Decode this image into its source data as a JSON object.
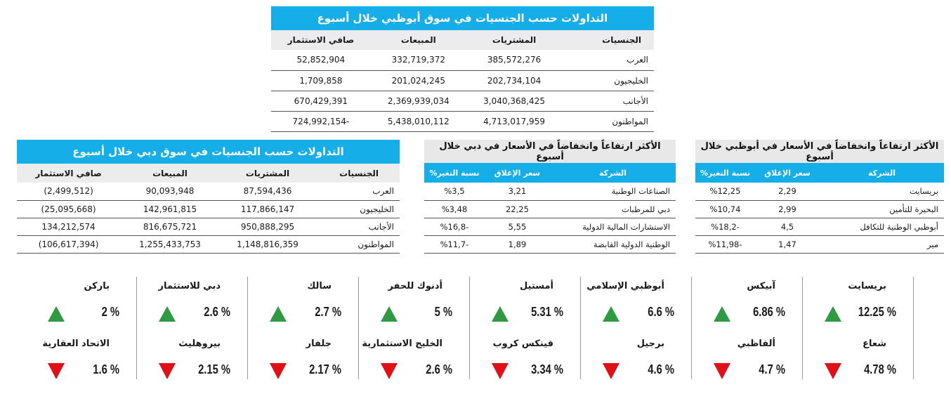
{
  "adx_nationalities": {
    "title": "التداولات حسب الجنسيات في سوق أبوظبي خلال أسبوع",
    "headers": [
      "الجنسيات",
      "المشتريات",
      "المبيعات",
      "صافي الاستثمار"
    ],
    "rows": [
      [
        "العرب",
        "385,572,276",
        "332,719,372",
        "52,852,904"
      ],
      [
        "الخليجيون",
        "202,734,104",
        "201,024,245",
        "1,709,858"
      ],
      [
        "الأجانب",
        "3,040,368,425",
        "2,369,939,034",
        "670,429,391"
      ],
      [
        "المواطنون",
        "4,713,017,959",
        "5,438,010,112",
        "724,992,154-"
      ]
    ]
  },
  "dfm_nationalities": {
    "title": "التداولات حسب الجنسيات في سوق دبي خلال أسبوع",
    "headers": [
      "الجنسيات",
      "المشتريات",
      "المبيعات",
      "صافي الاستثمار"
    ],
    "rows": [
      [
        "العرب",
        "87,594,436",
        "90,093,948",
        "(2,499,512)"
      ],
      [
        "الخليجيون",
        "117,866,147",
        "142,961,815",
        "(25,095,668)"
      ],
      [
        "الأجانب",
        "950,888,295",
        "816,675,721",
        "134,212,574"
      ],
      [
        "المواطنون",
        "1,148,816,359",
        "1,255,433,753",
        "(106,617,394)"
      ]
    ]
  },
  "dubai_movers": {
    "title": "الأكثر ارتفاعاً وانخفاضاً في الأسعار في دبي خلال أسبوع",
    "headers": [
      "الشركة",
      "سعر الإغلاق",
      "نسبة التغير%"
    ],
    "rows": [
      [
        "الصناعات الوطنية",
        "3,21",
        "%3,5"
      ],
      [
        "دبي للمرطبات",
        "22,25",
        "%3,48"
      ],
      [
        "الاستشارات المالية الدولية",
        "5,55",
        "%16,8-"
      ],
      [
        "الوطنية الدولية القابضة",
        "1,89",
        "%11,7-"
      ]
    ]
  },
  "ad_movers": {
    "title": "الأكثر ارتفاعاً وانخفاضاً في الأسعار في أبوظبي خلال أسبوع",
    "headers": [
      "الشركة",
      "سعر الإغلاق",
      "نسبة التغير%"
    ],
    "rows": [
      [
        "بريسايت",
        "2,29",
        "%12,25"
      ],
      [
        "البحيرة للتأمين",
        "2,99",
        "%10,74"
      ],
      [
        "أبوظبي الوطنية للتكافل",
        "4,5",
        "%18,2-"
      ],
      [
        "مير",
        "1,47",
        "%11,98-"
      ]
    ]
  },
  "gainers": [
    {
      "name": "بريسايت",
      "value": "12.25 %"
    },
    {
      "name": "آبيكس",
      "value": "6.86 %"
    },
    {
      "name": "أبوظبي الإسلامي",
      "value": "6.6 %"
    },
    {
      "name": "أمستيل",
      "value": "5.31 %"
    },
    {
      "name": "أدنوك للحفر",
      "value": "5 %"
    },
    {
      "name": "سالك",
      "value": "2.7 %"
    },
    {
      "name": "دبي للاستثمار",
      "value": "2.6 %"
    },
    {
      "name": "باركن",
      "value": "2 %"
    }
  ],
  "losers": [
    {
      "name": "شعاع",
      "value": "4.78 %"
    },
    {
      "name": "ألفاظبي",
      "value": "4.7 %"
    },
    {
      "name": "برجيل",
      "value": "4.6 %"
    },
    {
      "name": "فينكس كروب",
      "value": "3.34 %"
    },
    {
      "name": "الخليج الاستثمارية",
      "value": "2.6 %"
    },
    {
      "name": "جلفار",
      "value": "2.17 %"
    },
    {
      "name": "بيروهليث",
      "value": "2.15 %"
    },
    {
      "name": "الاتحاد العقارية",
      "value": "1.6 %"
    }
  ],
  "colors": {
    "accent": "#15aee8",
    "up": "#2e9b43",
    "down": "#e30f17",
    "header_gray": "#ececec"
  },
  "icons": {
    "up": "triangle-up-icon",
    "down": "triangle-down-icon"
  }
}
